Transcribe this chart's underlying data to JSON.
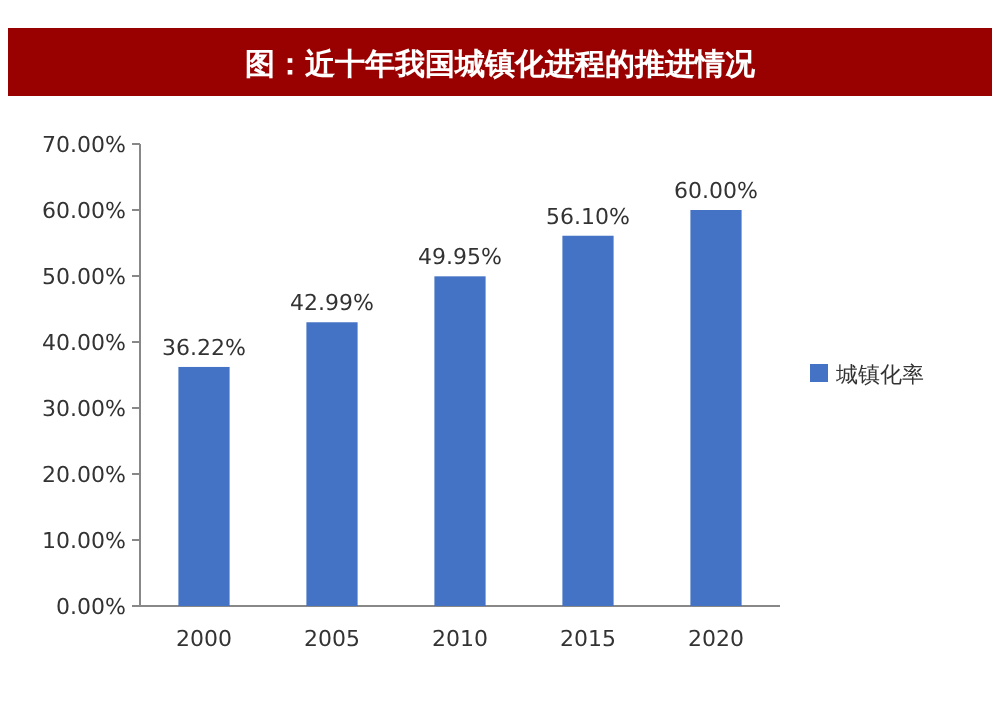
{
  "chart_data": {
    "type": "bar",
    "title": "图：近十年我国城镇化进程的推进情况",
    "categories": [
      "2000",
      "2005",
      "2010",
      "2015",
      "2020"
    ],
    "series": [
      {
        "name": "城镇化率",
        "color": "#4472c4",
        "values": [
          36.22,
          42.99,
          49.95,
          56.1,
          60.0
        ],
        "value_labels": [
          "36.22%",
          "42.99%",
          "49.95%",
          "56.10%",
          "60.00%"
        ]
      }
    ],
    "ylim": [
      0,
      70
    ],
    "yticks": [
      {
        "value": 0,
        "label": "0.00%"
      },
      {
        "value": 10,
        "label": "10.00%"
      },
      {
        "value": 20,
        "label": "20.00%"
      },
      {
        "value": 30,
        "label": "30.00%"
      },
      {
        "value": 40,
        "label": "40.00%"
      },
      {
        "value": 50,
        "label": "50.00%"
      },
      {
        "value": 60,
        "label": "60.00%"
      },
      {
        "value": 70,
        "label": "70.00%"
      }
    ],
    "legend": "right"
  }
}
